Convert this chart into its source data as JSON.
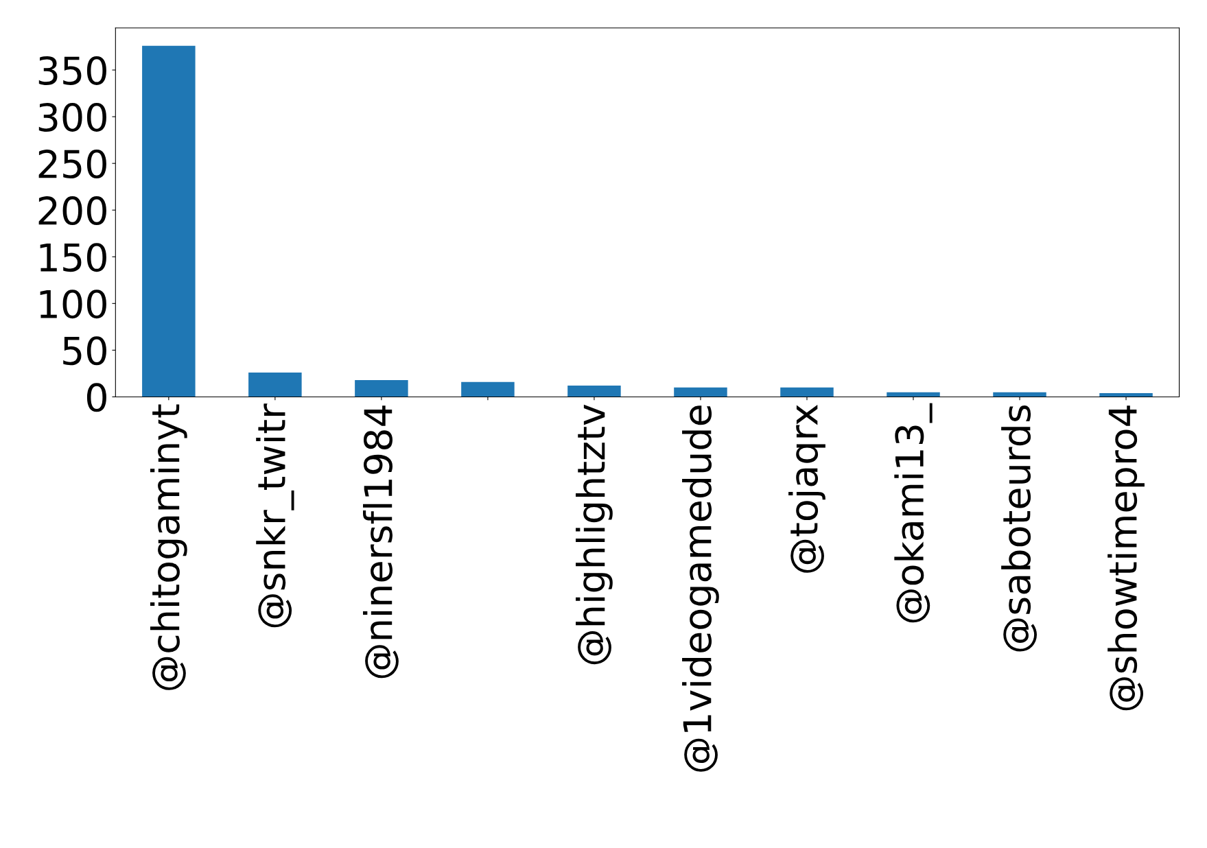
{
  "chart_data": {
    "type": "bar",
    "categories": [
      "@chitogaminyt",
      "@snkr_twitr",
      "@ninersfl1984",
      null,
      "@highlightztv",
      "@1videogamedude",
      "@tojaqrx",
      "@okami13_",
      "@saboteurds",
      "@showtimepro4"
    ],
    "values": [
      376,
      26,
      18,
      16,
      12,
      10,
      10,
      5,
      5,
      4
    ],
    "color": "#1f77b4",
    "ylim": [
      0,
      395
    ],
    "yticks": [
      0,
      50,
      100,
      150,
      200,
      250,
      300,
      350
    ],
    "grid": false
  }
}
